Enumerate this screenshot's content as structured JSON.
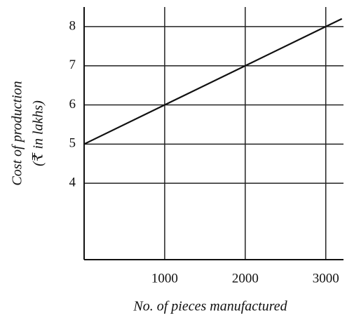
{
  "chart_data": {
    "type": "line",
    "xlabel": "No. of pieces manufactured",
    "ylabel": [
      "Cost of production",
      "(₹ in lakhs)"
    ],
    "x": [
      0,
      1000,
      2000,
      3000,
      3200
    ],
    "series": [
      {
        "name": "Cost of production",
        "color": "#111111",
        "values": [
          5,
          6,
          7,
          8,
          8.2
        ]
      }
    ],
    "xlim": [
      0,
      3220
    ],
    "xticks": [
      1000,
      2000,
      3000
    ],
    "ylim": [
      2.05,
      8.5
    ],
    "yticks": [
      4,
      5,
      6,
      7,
      8
    ],
    "grid": true
  }
}
